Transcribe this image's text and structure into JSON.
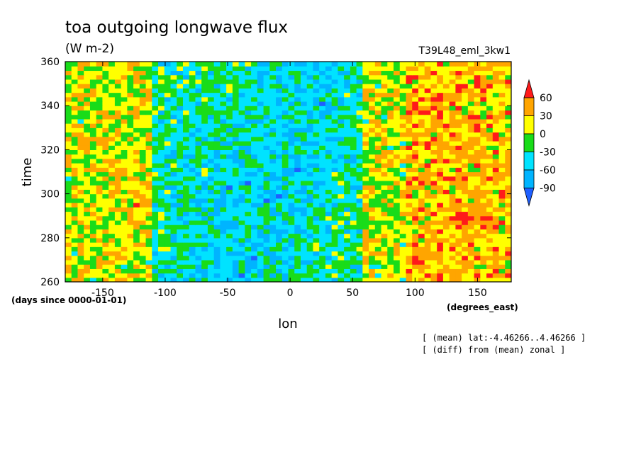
{
  "chart_data": {
    "type": "heatmap",
    "title": "toa outgoing longwave flux",
    "units": "(W m-2)",
    "run_name": "T39L48_eml_3kw1",
    "xlabel": "lon",
    "ylabel": "time",
    "x_units": "(degrees_east)",
    "y_units": "(days since 0000-01-01)",
    "xlim": [
      -180,
      177
    ],
    "ylim": [
      260,
      360
    ],
    "x_ticks": [
      -150,
      -100,
      -50,
      0,
      50,
      100,
      150
    ],
    "y_ticks": [
      260,
      280,
      300,
      320,
      340,
      360
    ],
    "x_tick_labels": [
      "-150",
      "-100",
      "-50",
      "0",
      "50",
      "100",
      "150"
    ],
    "y_tick_labels": [
      "260",
      "280",
      "300",
      "320",
      "340",
      "360"
    ],
    "colorbar": {
      "levels": [
        -90,
        -60,
        -30,
        0,
        30,
        60
      ],
      "labels": [
        "-90",
        "-60",
        "-30",
        "0",
        "30",
        "60"
      ],
      "colors": [
        "#1f5fff",
        "#00b4ff",
        "#00e3ff",
        "#19dc19",
        "#ffff00",
        "#ffa500",
        "#ff1a1a"
      ],
      "extend": "both"
    },
    "field_description_regions": [
      {
        "lon": [
          -180,
          -110
        ],
        "time": [
          260,
          360
        ],
        "typical_anomaly_band": "0 to 30"
      },
      {
        "lon": [
          -110,
          60
        ],
        "time": [
          260,
          360
        ],
        "typical_anomaly_band": "-90 to 0"
      },
      {
        "lon": [
          60,
          95
        ],
        "time": [
          260,
          360
        ],
        "typical_anomaly_band": "0 to 30"
      },
      {
        "lon": [
          95,
          177
        ],
        "time": [
          260,
          360
        ],
        "typical_anomaly_band": "30 to 60"
      }
    ],
    "annotations": [
      "[ (mean) lat:-4.46266..4.46266 ]",
      "[ (diff) from (mean) zonal ]"
    ]
  }
}
